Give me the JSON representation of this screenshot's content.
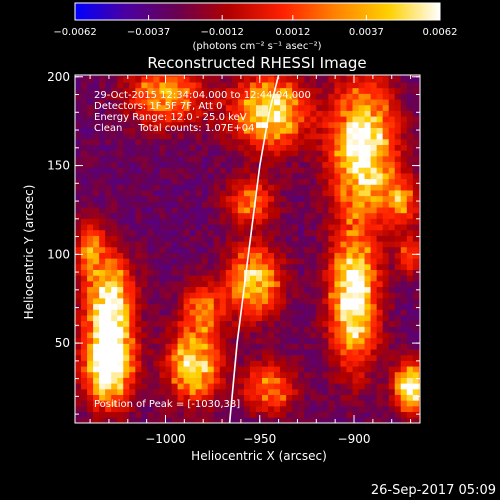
{
  "chart_data": {
    "type": "heatmap",
    "title": "Reconstructed RHESSI Image",
    "xlabel": "Heliocentric X (arcsec)",
    "ylabel": "Heliocentric Y (arcsec)",
    "xlim": [
      -1048,
      -865
    ],
    "ylim": [
      5,
      201
    ],
    "xticks": [
      -1000,
      -950,
      -900
    ],
    "xtick_labels": [
      "−1000",
      "−950",
      "−900"
    ],
    "yticks": [
      50,
      100,
      150,
      200
    ],
    "ytick_labels": [
      "50",
      "100",
      "150",
      "200"
    ],
    "colorbar": {
      "min": -0.0062,
      "max": 0.0062,
      "ticks": [
        -0.0062,
        -0.0037,
        -0.0012,
        0.0012,
        0.0037,
        0.0062
      ],
      "tick_labels": [
        "−0.0062",
        "−0.0037",
        "−0.0012",
        "0.0012",
        "0.0037",
        "0.0062"
      ],
      "unit_label": "(photons cm⁻² s⁻¹ asec⁻²)",
      "colormap": [
        "#0000ff",
        "#4b00a0",
        "#6a0050",
        "#b00000",
        "#ff2000",
        "#ff8000",
        "#ffd000",
        "#ffffff"
      ]
    },
    "info_lines": [
      "29-Oct-2015 12:34:04.000 to 12:44:04.000",
      "Detectors: 1F 5F 7F, Att 0",
      "Energy Range: 12.0 - 25.0 keV",
      "Clean     Total counts: 1.07E+04"
    ],
    "peak_label": "Position of Peak = [-1030,38]",
    "peak": [
      -1030,
      38
    ],
    "limb_curve": {
      "x": [
        -966,
        -962,
        -956,
        -950,
        -945,
        -940
      ],
      "y": [
        5,
        50,
        100,
        150,
        180,
        201
      ]
    },
    "sources": [
      {
        "x": -1030,
        "y": 38,
        "sx": 9,
        "sy": 16,
        "amp": 1.0
      },
      {
        "x": -1030,
        "y": 75,
        "sx": 9,
        "sy": 18,
        "amp": 0.8
      },
      {
        "x": -1040,
        "y": 105,
        "sx": 5,
        "sy": 10,
        "amp": 0.5
      },
      {
        "x": -985,
        "y": 38,
        "sx": 10,
        "sy": 14,
        "amp": 0.75
      },
      {
        "x": -980,
        "y": 70,
        "sx": 8,
        "sy": 10,
        "amp": 0.5
      },
      {
        "x": -1000,
        "y": 190,
        "sx": 14,
        "sy": 12,
        "amp": 0.6
      },
      {
        "x": -945,
        "y": 180,
        "sx": 14,
        "sy": 14,
        "amp": 0.8
      },
      {
        "x": -955,
        "y": 130,
        "sx": 9,
        "sy": 9,
        "amp": 0.5
      },
      {
        "x": -953,
        "y": 85,
        "sx": 10,
        "sy": 14,
        "amp": 0.7
      },
      {
        "x": -945,
        "y": 25,
        "sx": 10,
        "sy": 10,
        "amp": 0.5
      },
      {
        "x": -895,
        "y": 160,
        "sx": 12,
        "sy": 26,
        "amp": 0.9
      },
      {
        "x": -900,
        "y": 75,
        "sx": 9,
        "sy": 26,
        "amp": 0.9
      },
      {
        "x": -875,
        "y": 130,
        "sx": 7,
        "sy": 10,
        "amp": 0.45
      },
      {
        "x": -870,
        "y": 25,
        "sx": 6,
        "sy": 10,
        "amp": 0.9
      },
      {
        "x": -870,
        "y": 100,
        "sx": 5,
        "sy": 8,
        "amp": 0.4
      }
    ]
  },
  "footer": {
    "timestamp": "26-Sep-2017 05:09"
  }
}
